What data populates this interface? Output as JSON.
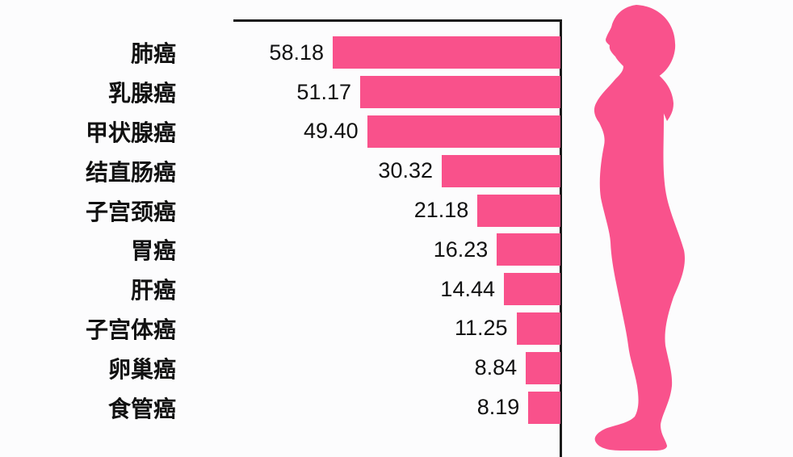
{
  "background_color": "#FCFCFD",
  "chart_data": {
    "type": "bar",
    "orientation": "horizontal",
    "bars_anchored": "right",
    "title": "",
    "xlabel": "",
    "ylabel": "",
    "categories": [
      "肺癌",
      "乳腺癌",
      "甲状腺癌",
      "结直肠癌",
      "子宫颈癌",
      "胃癌",
      "肝癌",
      "子宫体癌",
      "卵巢癌",
      "食管癌"
    ],
    "values": [
      58.18,
      51.17,
      49.4,
      30.32,
      21.18,
      16.23,
      14.44,
      11.25,
      8.84,
      8.19
    ],
    "value_labels": [
      "58.18",
      "51.17",
      "49.40",
      "30.32",
      "21.18",
      "16.23",
      "14.44",
      "11.25",
      "8.84",
      "8.19"
    ],
    "xlim": [
      0,
      83
    ],
    "grid": false,
    "legend": false,
    "bar_color": "#F9518B",
    "axis_color": "#1A1A1A",
    "text_color": "#111111"
  },
  "figure": {
    "name": "female-body-silhouette",
    "color": "#F9528C"
  }
}
